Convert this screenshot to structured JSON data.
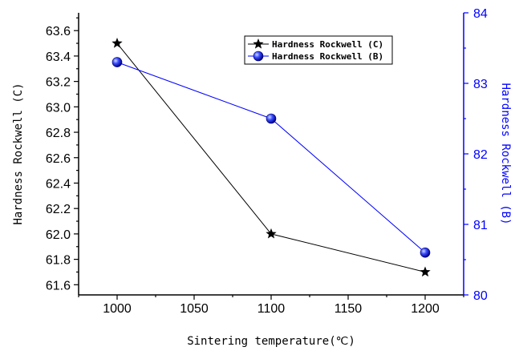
{
  "chart_data": {
    "type": "line",
    "xlabel": "Sintering temperature(℃)",
    "ylabel_left": "Hardness Rockwell (C)",
    "ylabel_right": "Hardness Rockwell (B)",
    "xlim": [
      975,
      1225
    ],
    "xticks": [
      1000,
      1050,
      1100,
      1150,
      1200
    ],
    "ylim_left": [
      61.52,
      63.74
    ],
    "yticks_left": [
      61.6,
      61.8,
      62.0,
      62.2,
      62.4,
      62.6,
      62.8,
      63.0,
      63.2,
      63.4,
      63.6
    ],
    "ylim_right": [
      80,
      84
    ],
    "yticks_right": [
      80,
      81,
      82,
      83,
      84
    ],
    "grid": false,
    "legend_position": "top-center",
    "series": [
      {
        "name": "Hardness Rockwell (C)",
        "axis": "left",
        "marker": "star",
        "color": "#000000",
        "x": [
          1000,
          1100,
          1200
        ],
        "y": [
          63.5,
          62.0,
          61.7
        ]
      },
      {
        "name": "Hardness Rockwell (B)",
        "axis": "right",
        "marker": "circle",
        "color": "#0000ff",
        "x": [
          1000,
          1100,
          1200
        ],
        "y": [
          83.3,
          82.5,
          80.6
        ]
      }
    ],
    "right_axis_color": "#0000ff"
  }
}
